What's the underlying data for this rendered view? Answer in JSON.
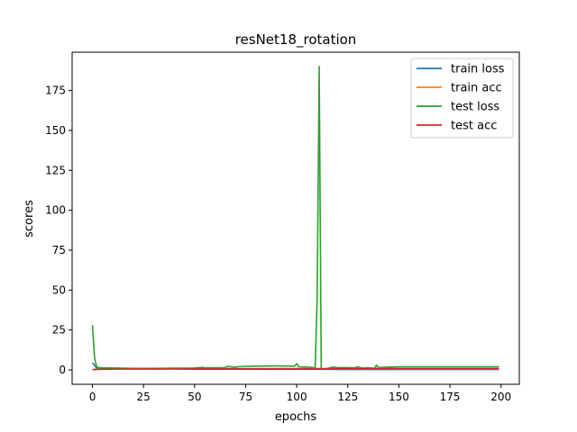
{
  "chart_data": {
    "type": "line",
    "title": "resNet18_rotation",
    "xlabel": "epochs",
    "ylabel": "scores",
    "xlim": [
      -9.95,
      208.95
    ],
    "ylim": [
      -9.0,
      199.0
    ],
    "xticks": [
      0,
      25,
      50,
      75,
      100,
      125,
      150,
      175,
      200
    ],
    "yticks": [
      0,
      25,
      50,
      75,
      100,
      125,
      150,
      175
    ],
    "grid": false,
    "legend_position": "top-right",
    "series": [
      {
        "name": "train loss",
        "color": "#1f77b4",
        "x": [
          0,
          2,
          5,
          10,
          20,
          30,
          40,
          50,
          60,
          70,
          80,
          90,
          100,
          110,
          120,
          130,
          140,
          150,
          160,
          170,
          180,
          190,
          199
        ],
        "y": [
          4.5,
          1.2,
          0.9,
          0.8,
          0.7,
          0.6,
          0.6,
          0.5,
          0.5,
          0.5,
          0.4,
          0.4,
          0.4,
          0.4,
          0.3,
          0.3,
          0.3,
          0.3,
          0.3,
          0.3,
          0.3,
          0.3,
          0.3
        ]
      },
      {
        "name": "train acc",
        "color": "#ff7f0e",
        "x": [
          0,
          2,
          5,
          10,
          20,
          30,
          40,
          50,
          60,
          70,
          80,
          90,
          100,
          110,
          120,
          130,
          140,
          150,
          160,
          170,
          180,
          190,
          199
        ],
        "y": [
          0.2,
          0.4,
          0.5,
          0.6,
          0.7,
          0.75,
          0.8,
          0.8,
          0.85,
          0.85,
          0.85,
          0.9,
          0.9,
          0.9,
          0.9,
          0.9,
          0.95,
          0.95,
          0.95,
          0.95,
          0.95,
          0.95,
          0.95
        ]
      },
      {
        "name": "test loss",
        "color": "#2ca02c",
        "x": [
          0,
          1,
          2,
          3,
          5,
          10,
          20,
          30,
          40,
          50,
          54,
          55,
          60,
          65,
          66,
          70,
          71,
          75,
          80,
          90,
          99,
          100,
          101,
          105,
          108,
          109,
          110,
          111,
          112,
          113,
          114,
          115,
          118,
          120,
          125,
          128,
          130,
          132,
          135,
          138,
          139,
          140,
          145,
          150,
          160,
          170,
          180,
          190,
          199
        ],
        "y": [
          28.0,
          8.0,
          2.0,
          1.5,
          1.3,
          1.2,
          1.0,
          1.0,
          1.1,
          1.2,
          1.6,
          1.3,
          1.4,
          1.5,
          2.2,
          1.6,
          2.0,
          2.2,
          2.4,
          2.5,
          2.4,
          4.0,
          2.0,
          1.8,
          1.5,
          0.8,
          45.0,
          190.0,
          1.0,
          0.3,
          0.8,
          1.0,
          1.8,
          1.4,
          1.5,
          1.3,
          2.0,
          1.2,
          1.4,
          1.0,
          3.0,
          1.5,
          1.8,
          2.0,
          2.0,
          2.0,
          2.0,
          2.0,
          2.0
        ]
      },
      {
        "name": "test acc",
        "color": "#d62728",
        "x": [
          0,
          2,
          5,
          10,
          20,
          30,
          40,
          50,
          60,
          70,
          80,
          90,
          100,
          110,
          120,
          130,
          140,
          150,
          160,
          170,
          180,
          190,
          199
        ],
        "y": [
          0.2,
          0.3,
          0.4,
          0.5,
          0.6,
          0.6,
          0.65,
          0.7,
          0.7,
          0.7,
          0.7,
          0.7,
          0.7,
          0.7,
          0.75,
          0.75,
          0.75,
          0.75,
          0.75,
          0.75,
          0.75,
          0.75,
          0.75
        ]
      }
    ]
  }
}
